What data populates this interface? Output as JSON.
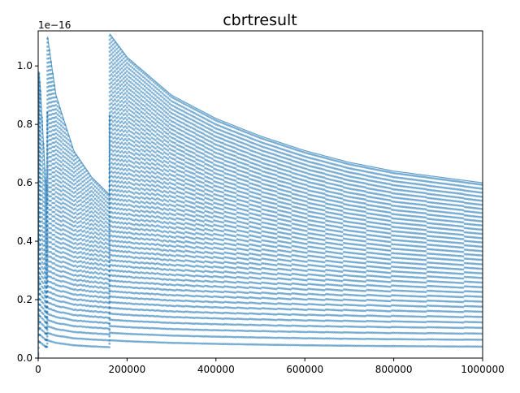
{
  "chart_data": {
    "type": "scatter",
    "title": "cbrtresult",
    "xlabel": "",
    "ylabel": "",
    "offset_label": "1e−16",
    "xlim": [
      0,
      1000000
    ],
    "ylim": [
      0,
      1.12
    ],
    "grid": false,
    "legend": "none",
    "x_ticks": [
      0,
      200000,
      400000,
      600000,
      800000,
      1000000
    ],
    "x_tick_labels": [
      "0",
      "200000",
      "400000",
      "600000",
      "800000",
      "1000000"
    ],
    "y_ticks": [
      0.0,
      0.2,
      0.4,
      0.6,
      0.8,
      1.0
    ],
    "y_tick_labels": [
      "0.0",
      "0.2",
      "0.4",
      "0.6",
      "0.8",
      "1.0"
    ],
    "marker_color": "#1f77b4",
    "series": [
      {
        "description_points": [
          {
            "x": 0,
            "y": 0.02
          },
          {
            "x": 2000,
            "y": 0.98
          },
          {
            "x": 5000,
            "y": 0.92
          },
          {
            "x": 15000,
            "y": 0.65
          },
          {
            "x": 18000,
            "y": 0.58
          },
          {
            "x": 20000,
            "y": 0.59
          },
          {
            "x": 21000,
            "y": 1.1
          },
          {
            "x": 40000,
            "y": 0.9
          },
          {
            "x": 80000,
            "y": 0.71
          },
          {
            "x": 120000,
            "y": 0.62
          },
          {
            "x": 160000,
            "y": 0.56
          },
          {
            "x": 161000,
            "y": 1.11
          },
          {
            "x": 200000,
            "y": 1.03
          },
          {
            "x": 300000,
            "y": 0.9
          },
          {
            "x": 400000,
            "y": 0.82
          },
          {
            "x": 500000,
            "y": 0.76
          },
          {
            "x": 600000,
            "y": 0.71
          },
          {
            "x": 700000,
            "y": 0.67
          },
          {
            "x": 800000,
            "y": 0.64
          },
          {
            "x": 900000,
            "y": 0.62
          },
          {
            "x": 1000000,
            "y": 0.6
          }
        ]
      }
    ]
  }
}
